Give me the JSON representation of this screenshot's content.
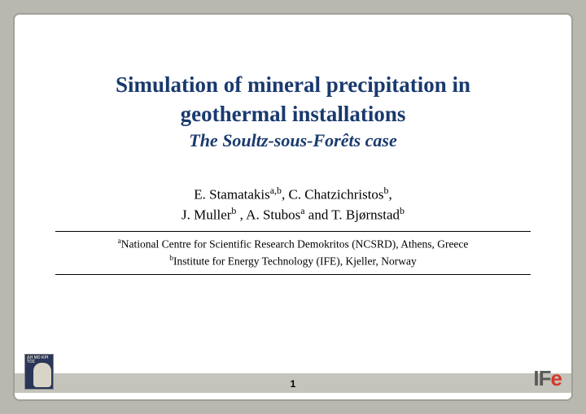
{
  "title_line1": "Simulation of mineral precipitation in",
  "title_line2": "geothermal installations",
  "subtitle": "The Soultz-sous-Forêts case",
  "authors_line1_html": "E. Stamatakis<sup>a,b</sup>, C. Chatzichristos<sup>b</sup>,",
  "authors_line2_html": "J. Muller<sup>b</sup> , A. Stubos<sup>a</sup> and T. Bjørnstad<sup>b</sup>",
  "affiliation_a_html": "<sup>a</sup>National Centre for Scientific Research Demokritos (NCSRD), Athens, Greece",
  "affiliation_b_html": "<sup>b</sup>Institute for Energy Technology (IFE), Kjeller, Norway",
  "page_number": "1",
  "logo_left_text": "ΔH\nMO\nKPI\nTOΣ",
  "logo_right_text_main": "IF",
  "logo_right_text_accent": "e",
  "colors": {
    "title": "#1a3a6e",
    "background": "#b8b8b0",
    "footer_bar": "#c4c4bc",
    "accent": "#d43a2a"
  }
}
